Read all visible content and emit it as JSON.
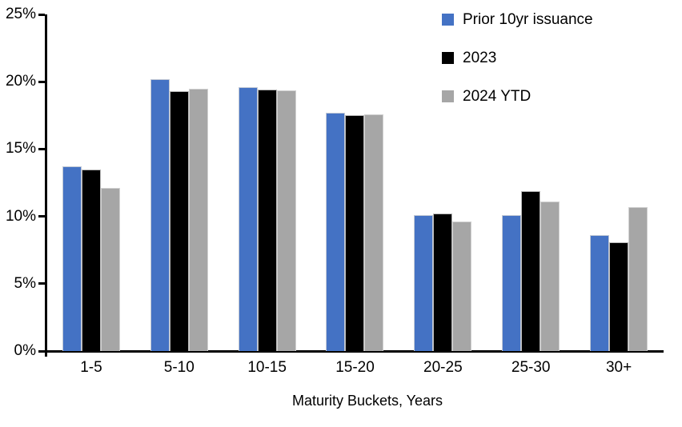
{
  "chart_data": {
    "type": "bar",
    "title": "",
    "categories": [
      "1-5",
      "5-10",
      "10-15",
      "15-20",
      "20-25",
      "25-30",
      "30+"
    ],
    "series": [
      {
        "name": "Prior 10yr issuance",
        "color": "#4472C4",
        "values": [
          13.7,
          20.2,
          19.6,
          17.7,
          10.1,
          10.1,
          8.6
        ]
      },
      {
        "name": "2023",
        "color": "#000000",
        "values": [
          13.5,
          19.3,
          19.45,
          17.5,
          10.2,
          11.9,
          8.1
        ]
      },
      {
        "name": "2024 YTD",
        "color": "#A6A6A6",
        "values": [
          12.1,
          19.5,
          19.35,
          17.6,
          9.6,
          11.1,
          10.7
        ]
      }
    ],
    "xlabel": "Maturity Buckets, Years",
    "ylabel": "",
    "ylim": [
      0,
      25
    ],
    "ytick_step": 5,
    "yticks": [
      "0%",
      "5%",
      "10%",
      "15%",
      "20%",
      "25%"
    ],
    "grid": false,
    "legend_position": "top-right",
    "axis_color": "#000000"
  }
}
